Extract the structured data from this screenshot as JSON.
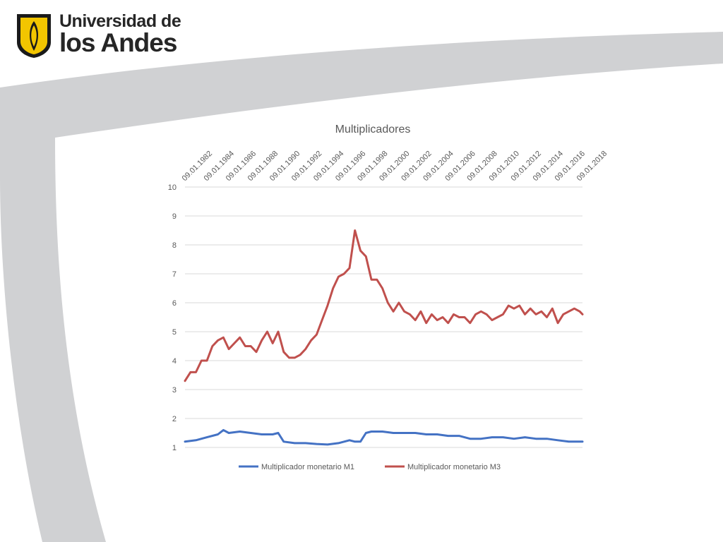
{
  "logo": {
    "line1": "Universidad de",
    "line2": "los Andes",
    "shield_color": "#f2c500",
    "shield_outline": "#1a1a1a"
  },
  "theme": {
    "swoosh_color": "#d0d1d3",
    "gridline_color": "#d9d9d9"
  },
  "chart_data": {
    "type": "line",
    "title": "Multiplicadores",
    "xlabel": "",
    "ylabel": "",
    "ylim": [
      1,
      10
    ],
    "yticks": [
      "1",
      "2",
      "3",
      "4",
      "5",
      "6",
      "7",
      "8",
      "9",
      "10"
    ],
    "x_axis_position": "top",
    "x_tick_labels": [
      "09.01.1982",
      "09.01.1984",
      "09.01.1986",
      "09.01.1988",
      "09.01.1990",
      "09.01.1992",
      "09.01.1994",
      "09.01.1996",
      "09.01.1998",
      "09.01.2000",
      "09.01.2002",
      "09.01.2004",
      "09.01.2006",
      "09.01.2008",
      "09.01.2010",
      "09.01.2012",
      "09.01.2014",
      "09.01.2016",
      "09.01.2018"
    ],
    "x_range": [
      "1982-01",
      "2018-04"
    ],
    "grid": true,
    "legend_position": "bottom",
    "series": [
      {
        "name": "Multiplicador monetario M1",
        "color": "#4472c4",
        "x": [
          "1982-01",
          "1983-01",
          "1984-01",
          "1985-01",
          "1985-07",
          "1986-01",
          "1987-01",
          "1988-01",
          "1989-01",
          "1990-01",
          "1990-07",
          "1991-01",
          "1992-01",
          "1993-01",
          "1994-01",
          "1995-01",
          "1996-01",
          "1997-01",
          "1997-07",
          "1998-01",
          "1998-07",
          "1999-01",
          "2000-01",
          "2001-01",
          "2002-01",
          "2003-01",
          "2004-01",
          "2005-01",
          "2006-01",
          "2007-01",
          "2008-01",
          "2009-01",
          "2010-01",
          "2011-01",
          "2012-01",
          "2013-01",
          "2014-01",
          "2015-01",
          "2016-01",
          "2017-01",
          "2018-01",
          "2018-04"
        ],
        "values": [
          1.2,
          1.25,
          1.35,
          1.45,
          1.6,
          1.5,
          1.55,
          1.5,
          1.45,
          1.45,
          1.5,
          1.2,
          1.15,
          1.15,
          1.12,
          1.1,
          1.15,
          1.25,
          1.2,
          1.2,
          1.5,
          1.55,
          1.55,
          1.5,
          1.5,
          1.5,
          1.45,
          1.45,
          1.4,
          1.4,
          1.3,
          1.3,
          1.35,
          1.35,
          1.3,
          1.35,
          1.3,
          1.3,
          1.25,
          1.2,
          1.2,
          1.2
        ]
      },
      {
        "name": "Multiplicador monetario M3",
        "color": "#c0504d",
        "x": [
          "1982-01",
          "1982-07",
          "1983-01",
          "1983-07",
          "1984-01",
          "1984-07",
          "1985-01",
          "1985-07",
          "1986-01",
          "1986-07",
          "1987-01",
          "1987-07",
          "1988-01",
          "1988-07",
          "1989-01",
          "1989-07",
          "1990-01",
          "1990-07",
          "1991-01",
          "1991-07",
          "1992-01",
          "1992-07",
          "1993-01",
          "1993-07",
          "1994-01",
          "1994-07",
          "1995-01",
          "1995-07",
          "1996-01",
          "1996-07",
          "1997-01",
          "1997-07",
          "1998-01",
          "1998-07",
          "1999-01",
          "1999-07",
          "2000-01",
          "2000-07",
          "2001-01",
          "2001-07",
          "2002-01",
          "2002-07",
          "2003-01",
          "2003-07",
          "2004-01",
          "2004-07",
          "2005-01",
          "2005-07",
          "2006-01",
          "2006-07",
          "2007-01",
          "2007-07",
          "2008-01",
          "2008-07",
          "2009-01",
          "2009-07",
          "2010-01",
          "2010-07",
          "2011-01",
          "2011-07",
          "2012-01",
          "2012-07",
          "2013-01",
          "2013-07",
          "2014-01",
          "2014-07",
          "2015-01",
          "2015-07",
          "2016-01",
          "2016-07",
          "2017-01",
          "2017-07",
          "2018-01",
          "2018-04"
        ],
        "values": [
          3.3,
          3.6,
          3.6,
          4.0,
          4.0,
          4.5,
          4.7,
          4.8,
          4.4,
          4.6,
          4.8,
          4.5,
          4.5,
          4.3,
          4.7,
          5.0,
          4.6,
          5.0,
          4.3,
          4.1,
          4.1,
          4.2,
          4.4,
          4.7,
          4.9,
          5.4,
          5.9,
          6.5,
          6.9,
          7.0,
          7.2,
          8.5,
          7.8,
          7.6,
          6.8,
          6.8,
          6.5,
          6.0,
          5.7,
          6.0,
          5.7,
          5.6,
          5.4,
          5.7,
          5.3,
          5.6,
          5.4,
          5.5,
          5.3,
          5.6,
          5.5,
          5.5,
          5.3,
          5.6,
          5.7,
          5.6,
          5.4,
          5.5,
          5.6,
          5.9,
          5.8,
          5.9,
          5.6,
          5.8,
          5.6,
          5.7,
          5.5,
          5.8,
          5.3,
          5.6,
          5.7,
          5.8,
          5.7,
          5.6
        ]
      }
    ]
  }
}
